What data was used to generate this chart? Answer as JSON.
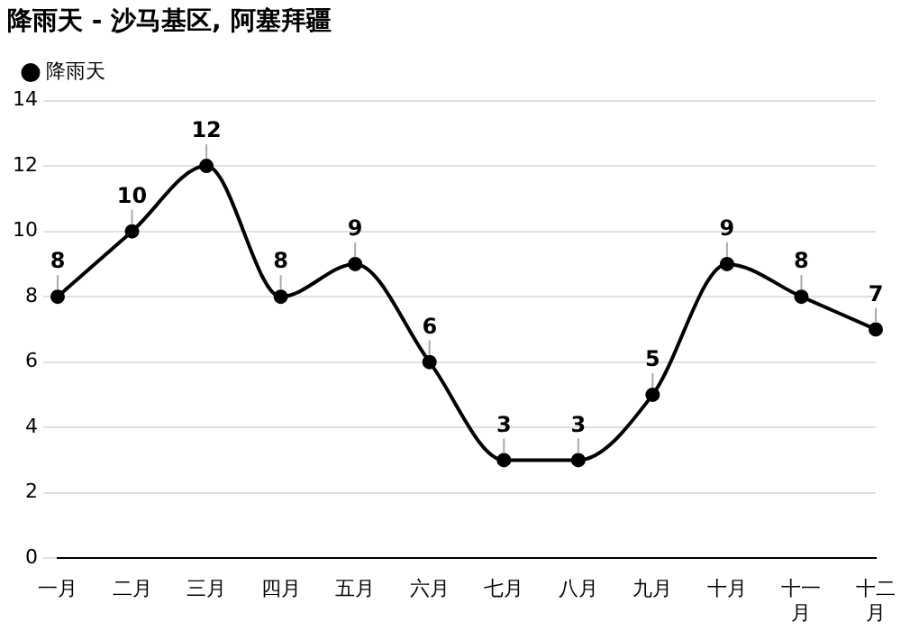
{
  "chart_data": {
    "type": "line",
    "title": "降雨天 - 沙马基区, 阿塞拜疆",
    "categories": [
      "一月",
      "二月",
      "三月",
      "四月",
      "五月",
      "六月",
      "七月",
      "八月",
      "九月",
      "十月",
      "十一月",
      "十二月"
    ],
    "series": [
      {
        "name": "降雨天",
        "color": "#000000",
        "values": [
          8,
          10,
          12,
          8,
          9,
          6,
          3,
          3,
          5,
          9,
          8,
          7
        ]
      }
    ],
    "ylim": [
      0,
      14
    ],
    "yticks": [
      0,
      2,
      4,
      6,
      8,
      10,
      12,
      14
    ],
    "grid": "y",
    "legend": "top left",
    "marker": "circle",
    "line_style": "solid",
    "data_labels": true
  }
}
